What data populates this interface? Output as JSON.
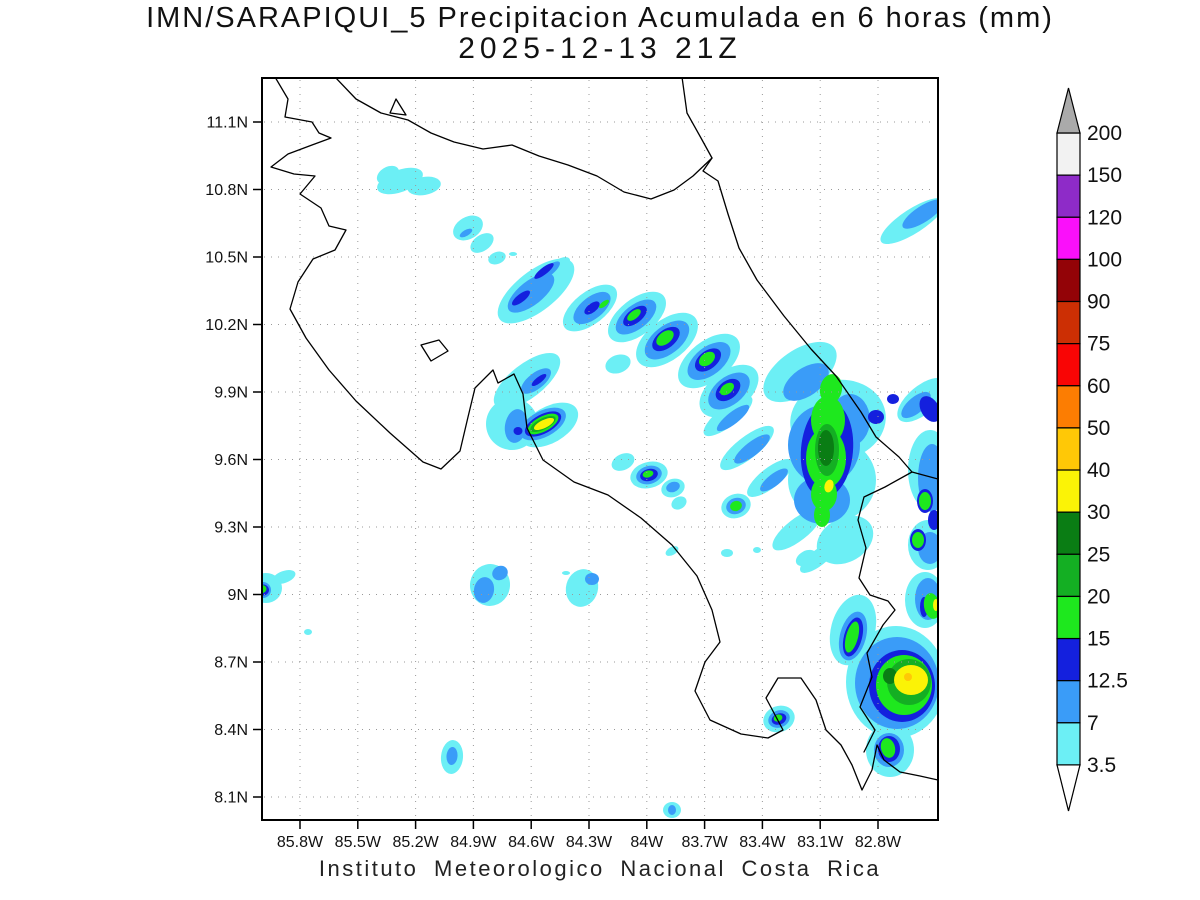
{
  "title": {
    "line1": "IMN/SARAPIQUI_5 Precipitacion Acumulada en 6 horas (mm)",
    "line2": "2025-12-13 21Z"
  },
  "caption": "Instituto Meteorologico Nacional Costa Rica",
  "axes": {
    "lon_labels": [
      "85.8W",
      "85.5W",
      "85.2W",
      "84.9W",
      "84.6W",
      "84.3W",
      "84W",
      "83.7W",
      "83.4W",
      "83.1W",
      "82.8W"
    ],
    "lat_labels": [
      "11.1N",
      "10.8N",
      "10.5N",
      "10.2N",
      "9.9N",
      "9.6N",
      "9.3N",
      "9N",
      "8.7N",
      "8.4N",
      "8.1N"
    ]
  },
  "colorbar": {
    "labels": [
      "200",
      "150",
      "120",
      "100",
      "90",
      "75",
      "60",
      "50",
      "40",
      "30",
      "25",
      "20",
      "15",
      "12.5",
      "7",
      "3.5"
    ],
    "arrow_low_color": "#FFFFFF"
  },
  "chart_data": {
    "type": "heatmap",
    "title": "IMN/SARAPIQUI_5 Precipitacion Acumulada en 6 horas (mm)",
    "valid_time": "2025-12-13 21Z",
    "units": "mm",
    "xlabel_ticks": [
      "85.8W",
      "85.5W",
      "85.2W",
      "84.9W",
      "84.6W",
      "84.3W",
      "84W",
      "83.7W",
      "83.4W",
      "83.1W",
      "82.8W"
    ],
    "ylabel_ticks": [
      "11.1N",
      "10.8N",
      "10.5N",
      "10.2N",
      "9.9N",
      "9.6N",
      "9.3N",
      "9N",
      "8.7N",
      "8.4N",
      "8.1N"
    ],
    "lon_range_deg_w": [
      86.0,
      82.5
    ],
    "lat_range_deg_n": [
      8.0,
      11.3
    ],
    "grid": "dotted 0.3 degree graticule",
    "legend_position": "right vertical colorbar with out-of-range arrows",
    "levels_mm": [
      3.5,
      7,
      12.5,
      15,
      20,
      25,
      30,
      40,
      50,
      60,
      75,
      90,
      100,
      120,
      150,
      200
    ],
    "level_colors": [
      "#6CEFF5",
      "#3A9CF8",
      "#1420DE",
      "#1EE81E",
      "#14AF23",
      "#0A7D14",
      "#FBF306",
      "#FFC806",
      "#FC7D02",
      "#F90505",
      "#CC2F04",
      "#930307",
      "#FA10FA",
      "#8E2BC8",
      "#F2F2F2",
      "#AAAAAA"
    ],
    "features": [
      {
        "area": "NW Guanacaste cells near 85.3W 10.85N",
        "max_band_mm": "3.5-7"
      },
      {
        "area": "NW-SE convective band 84.8W-83.6W / 10.5N-9.8N with embedded cores",
        "max_band_mm": "15-25"
      },
      {
        "area": "Central Pacific coastal cell near 84.6W 9.75N (yellow core)",
        "max_band_mm": "30-40"
      },
      {
        "area": "Large Caribbean-slope cluster 83.4W-82.8W / 10.1N-9.2N (yellow speck)",
        "max_band_mm": "30-40"
      },
      {
        "area": "South Caribbean / Talamanca cluster 83.1W-82.8W / 8.9N-8.3N (gold core)",
        "max_band_mm": "40-50"
      },
      {
        "area": "Golfo Dulce / Osa cell near 83.3W 8.45N",
        "max_band_mm": "15-20"
      },
      {
        "area": "Scattered weak Pacific cells 85.8W-84.3W / 9.1N-8.1N",
        "max_band_mm": "7-12.5"
      },
      {
        "area": "NE offshore streak near 82.9W 10.7N",
        "max_band_mm": "7-12.5"
      }
    ]
  }
}
